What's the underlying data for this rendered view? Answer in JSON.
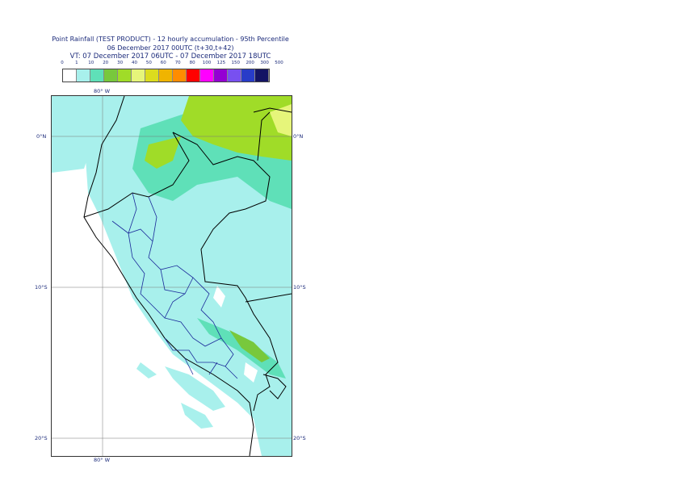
{
  "header": {
    "line1": "Point Rainfall (TEST PRODUCT) - 12 hourly accumulation - 95th Percentile",
    "line2": "06 December 2017 00UTC (t+30,t+42)",
    "line3": "VT: 07 December 2017 06UTC - 07 December 2017 18UTC"
  },
  "legend": {
    "ticks": [
      "0",
      "1",
      "10",
      "20",
      "30",
      "40",
      "50",
      "60",
      "70",
      "80",
      "100",
      "125",
      "150",
      "200",
      "300",
      "500"
    ],
    "colors": [
      "#ffffff",
      "#a8f0ec",
      "#5fe0b8",
      "#78c83c",
      "#a0dc28",
      "#e6f57a",
      "#dcdc1e",
      "#f0b400",
      "#ff8c00",
      "#ff0000",
      "#ff00ff",
      "#9400d3",
      "#7850f0",
      "#283cc8",
      "#141464"
    ]
  },
  "axes": {
    "lon_top": "80° W",
    "lon_bottom": "80° W",
    "lat_labels": [
      "0°N",
      "10°S",
      "20°S"
    ]
  }
}
